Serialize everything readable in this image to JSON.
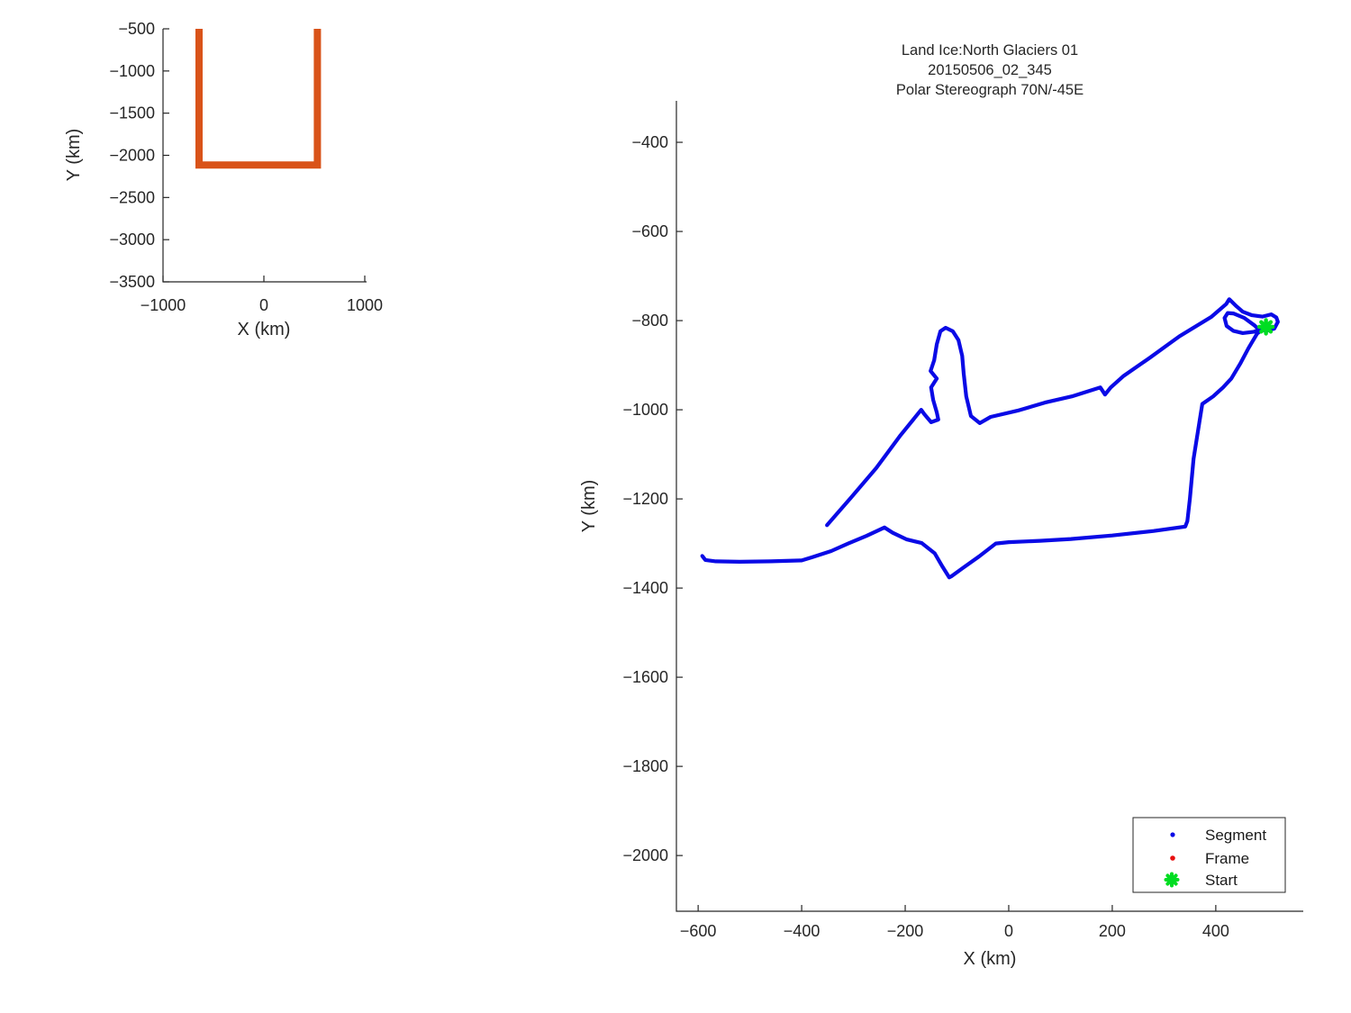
{
  "figure": {
    "background": "#ffffff"
  },
  "chart_data": [
    {
      "id": "overview",
      "type": "line",
      "xlabel": "X (km)",
      "ylabel": "Y (km)",
      "xlim": [
        -1000,
        1000
      ],
      "ylim": [
        -3500,
        -500
      ],
      "xticks": [
        -1000,
        0,
        1000
      ],
      "yticks": [
        -500,
        -1000,
        -1500,
        -2000,
        -2500,
        -3000,
        -3500
      ],
      "grid": false,
      "line_color": "#D95319",
      "series": [
        {
          "name": "mission-region-outline",
          "x": [
            -643,
            -643,
            530,
            530
          ],
          "y": [
            -500,
            -2115,
            -2115,
            -500
          ]
        }
      ]
    },
    {
      "id": "main",
      "type": "line",
      "title_lines": [
        "Land Ice:North Glaciers 01",
        "20150506_02_345",
        "Polar Stereograph 70N/-45E"
      ],
      "xlabel": "X (km)",
      "ylabel": "Y (km)",
      "xlim": [
        -642,
        569
      ],
      "ylim": [
        -2125,
        -307
      ],
      "xticks": [
        -600,
        -400,
        -200,
        0,
        200,
        400
      ],
      "yticks": [
        -400,
        -600,
        -800,
        -1000,
        -1200,
        -1400,
        -1600,
        -1800,
        -2000
      ],
      "grid": false,
      "legend": {
        "position": "south-east",
        "items": [
          {
            "label": "Segment",
            "marker": "dot",
            "color": "#0A0AE6"
          },
          {
            "label": "Frame",
            "marker": "dot",
            "color": "#E81010"
          },
          {
            "label": "Start",
            "marker": "asterisk",
            "color": "#00DD22"
          }
        ]
      },
      "start_point": [
        497,
        -814
      ],
      "series": [
        {
          "name": "segment-track",
          "color": "#0A0AE6",
          "points": [
            [
              -351,
              -1259
            ],
            [
              -304,
              -1196
            ],
            [
              -256,
              -1131
            ],
            [
              -209,
              -1057
            ],
            [
              -169,
              -1000
            ],
            [
              -163,
              -1010
            ],
            [
              -150,
              -1028
            ],
            [
              -136,
              -1022
            ],
            [
              -139,
              -1006
            ],
            [
              -146,
              -978
            ],
            [
              -150,
              -950
            ],
            [
              -139,
              -930
            ],
            [
              -151,
              -913
            ],
            [
              -144,
              -889
            ],
            [
              -139,
              -853
            ],
            [
              -132,
              -824
            ],
            [
              -122,
              -816
            ],
            [
              -108,
              -824
            ],
            [
              -97,
              -844
            ],
            [
              -90,
              -879
            ],
            [
              -87,
              -919
            ],
            [
              -82,
              -970
            ],
            [
              -73,
              -1014
            ],
            [
              -56,
              -1030
            ],
            [
              -35,
              -1016
            ],
            [
              17,
              -1002
            ],
            [
              70,
              -984
            ],
            [
              122,
              -970
            ],
            [
              177,
              -950
            ],
            [
              186,
              -966
            ],
            [
              197,
              -950
            ],
            [
              221,
              -925
            ],
            [
              273,
              -883
            ],
            [
              330,
              -835
            ],
            [
              391,
              -792
            ],
            [
              420,
              -763
            ],
            [
              426,
              -752
            ],
            [
              440,
              -768
            ],
            [
              452,
              -780
            ],
            [
              470,
              -788
            ],
            [
              490,
              -791
            ],
            [
              507,
              -786
            ],
            [
              517,
              -793
            ],
            [
              520,
              -803
            ],
            [
              513,
              -818
            ],
            [
              498,
              -823
            ],
            [
              483,
              -820
            ],
            [
              475,
              -811
            ],
            [
              455,
              -794
            ],
            [
              434,
              -784
            ],
            [
              423,
              -783
            ],
            [
              417,
              -794
            ],
            [
              421,
              -812
            ],
            [
              434,
              -823
            ],
            [
              452,
              -828
            ],
            [
              474,
              -825
            ],
            [
              490,
              -818
            ],
            [
              497,
              -814
            ],
            [
              480,
              -829
            ],
            [
              463,
              -862
            ],
            [
              447,
              -897
            ],
            [
              430,
              -930
            ],
            [
              414,
              -950
            ],
            [
              395,
              -970
            ],
            [
              374,
              -987
            ],
            [
              368,
              -1030
            ],
            [
              357,
              -1110
            ],
            [
              350,
              -1200
            ],
            [
              345,
              -1250
            ],
            [
              341,
              -1262
            ],
            [
              280,
              -1272
            ],
            [
              200,
              -1282
            ],
            [
              120,
              -1290
            ],
            [
              60,
              -1294
            ],
            [
              0,
              -1297
            ],
            [
              -25,
              -1300
            ],
            [
              -57,
              -1329
            ],
            [
              -90,
              -1356
            ],
            [
              -110,
              -1373
            ],
            [
              -115,
              -1376
            ],
            [
              -128,
              -1352
            ],
            [
              -143,
              -1322
            ],
            [
              -168,
              -1299
            ],
            [
              -197,
              -1291
            ],
            [
              -224,
              -1276
            ],
            [
              -240,
              -1264
            ],
            [
              -275,
              -1283
            ],
            [
              -310,
              -1300
            ],
            [
              -343,
              -1317
            ],
            [
              -380,
              -1331
            ],
            [
              -400,
              -1338
            ],
            [
              -460,
              -1340
            ],
            [
              -520,
              -1341
            ],
            [
              -566,
              -1340
            ],
            [
              -586,
              -1337
            ],
            [
              -592,
              -1328
            ]
          ]
        }
      ]
    }
  ]
}
